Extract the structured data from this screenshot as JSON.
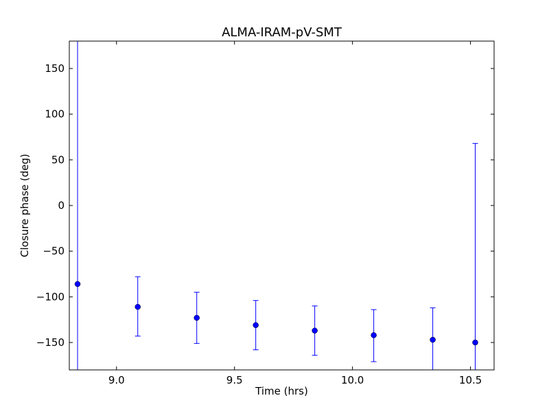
{
  "chart_data": {
    "type": "scatter",
    "title": "ALMA-IRAM-pV-SMT",
    "xlabel": "Time (hrs)",
    "ylabel": "Closure phase (deg)",
    "xlim": [
      8.8,
      10.6
    ],
    "ylim": [
      -180,
      180
    ],
    "xticks": [
      9.0,
      9.5,
      10.0,
      10.5
    ],
    "xtick_labels": [
      "9.0",
      "9.5",
      "10.0",
      "10.5"
    ],
    "yticks": [
      150,
      100,
      50,
      0,
      -50,
      -100,
      -150
    ],
    "ytick_labels": [
      "150",
      "100",
      "50",
      "0",
      "−50",
      "−100",
      "−150"
    ],
    "grid": false,
    "marker_color": "#0000ff",
    "series": [
      {
        "points": [
          {
            "x": 8.835,
            "y": -86,
            "err_low": -180,
            "err_high": 180
          },
          {
            "x": 9.09,
            "y": -111,
            "err_low": -143,
            "err_high": -78
          },
          {
            "x": 9.34,
            "y": -123,
            "err_low": -151,
            "err_high": -95
          },
          {
            "x": 9.59,
            "y": -131,
            "err_low": -158,
            "err_high": -104
          },
          {
            "x": 9.84,
            "y": -137,
            "err_low": -164,
            "err_high": -110
          },
          {
            "x": 10.09,
            "y": -142,
            "err_low": -171,
            "err_high": -114
          },
          {
            "x": 10.34,
            "y": -147,
            "err_low": -180,
            "err_high": -112
          },
          {
            "x": 10.52,
            "y": -150,
            "err_low": -180,
            "err_high": 68
          }
        ]
      }
    ]
  }
}
